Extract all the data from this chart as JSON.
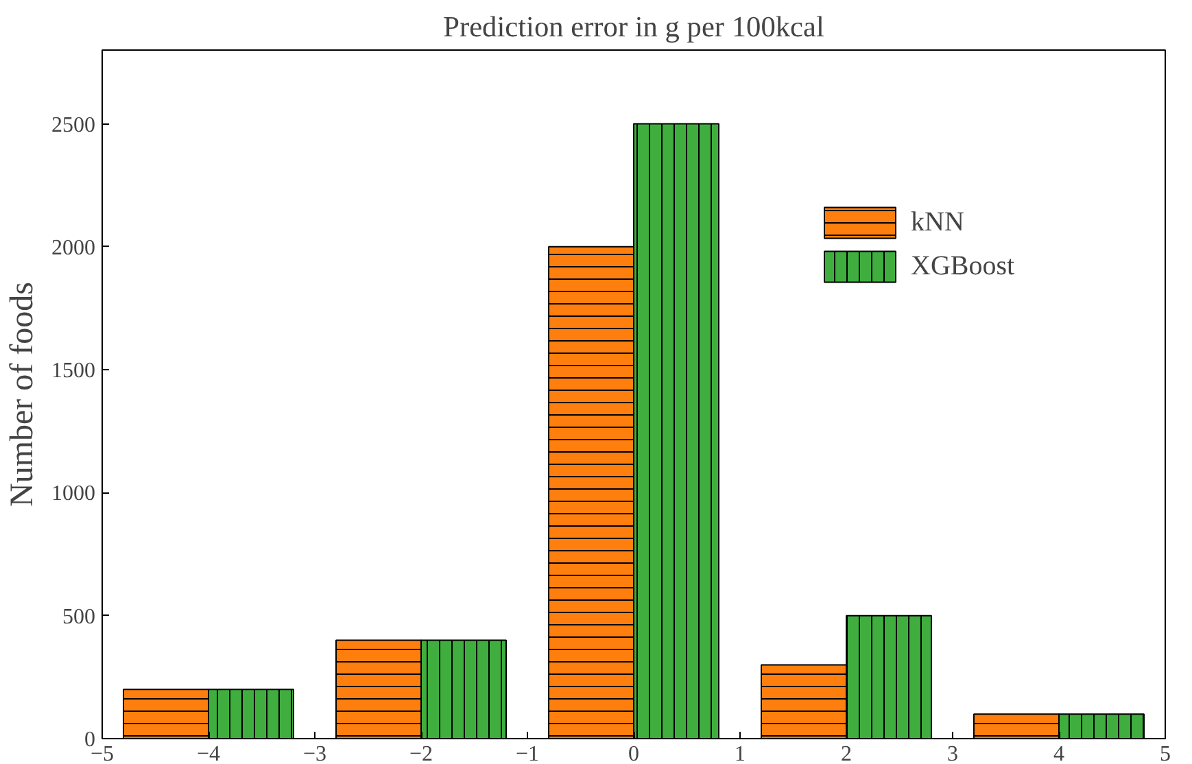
{
  "chart_data": {
    "type": "bar",
    "title": "Prediction error in g per 100kcal",
    "ylabel": "Number of foods",
    "x": [
      -4,
      -2,
      0,
      2,
      4
    ],
    "series": [
      {
        "name": "kNN",
        "color": "#ff7f0e",
        "values": [
          200,
          400,
          2000,
          300,
          100
        ]
      },
      {
        "name": "XGBoost",
        "color": "#3fae3f",
        "values": [
          200,
          400,
          2500,
          500,
          100
        ]
      }
    ],
    "xlim": [
      -5,
      5
    ],
    "xticks": [
      -5,
      -4,
      -3,
      -2,
      -1,
      0,
      1,
      2,
      3,
      4,
      5
    ],
    "ylim": [
      0,
      2800
    ],
    "yticks": [
      0,
      500,
      1000,
      1500,
      2000,
      2500
    ],
    "grid": false,
    "legend": "top right"
  }
}
